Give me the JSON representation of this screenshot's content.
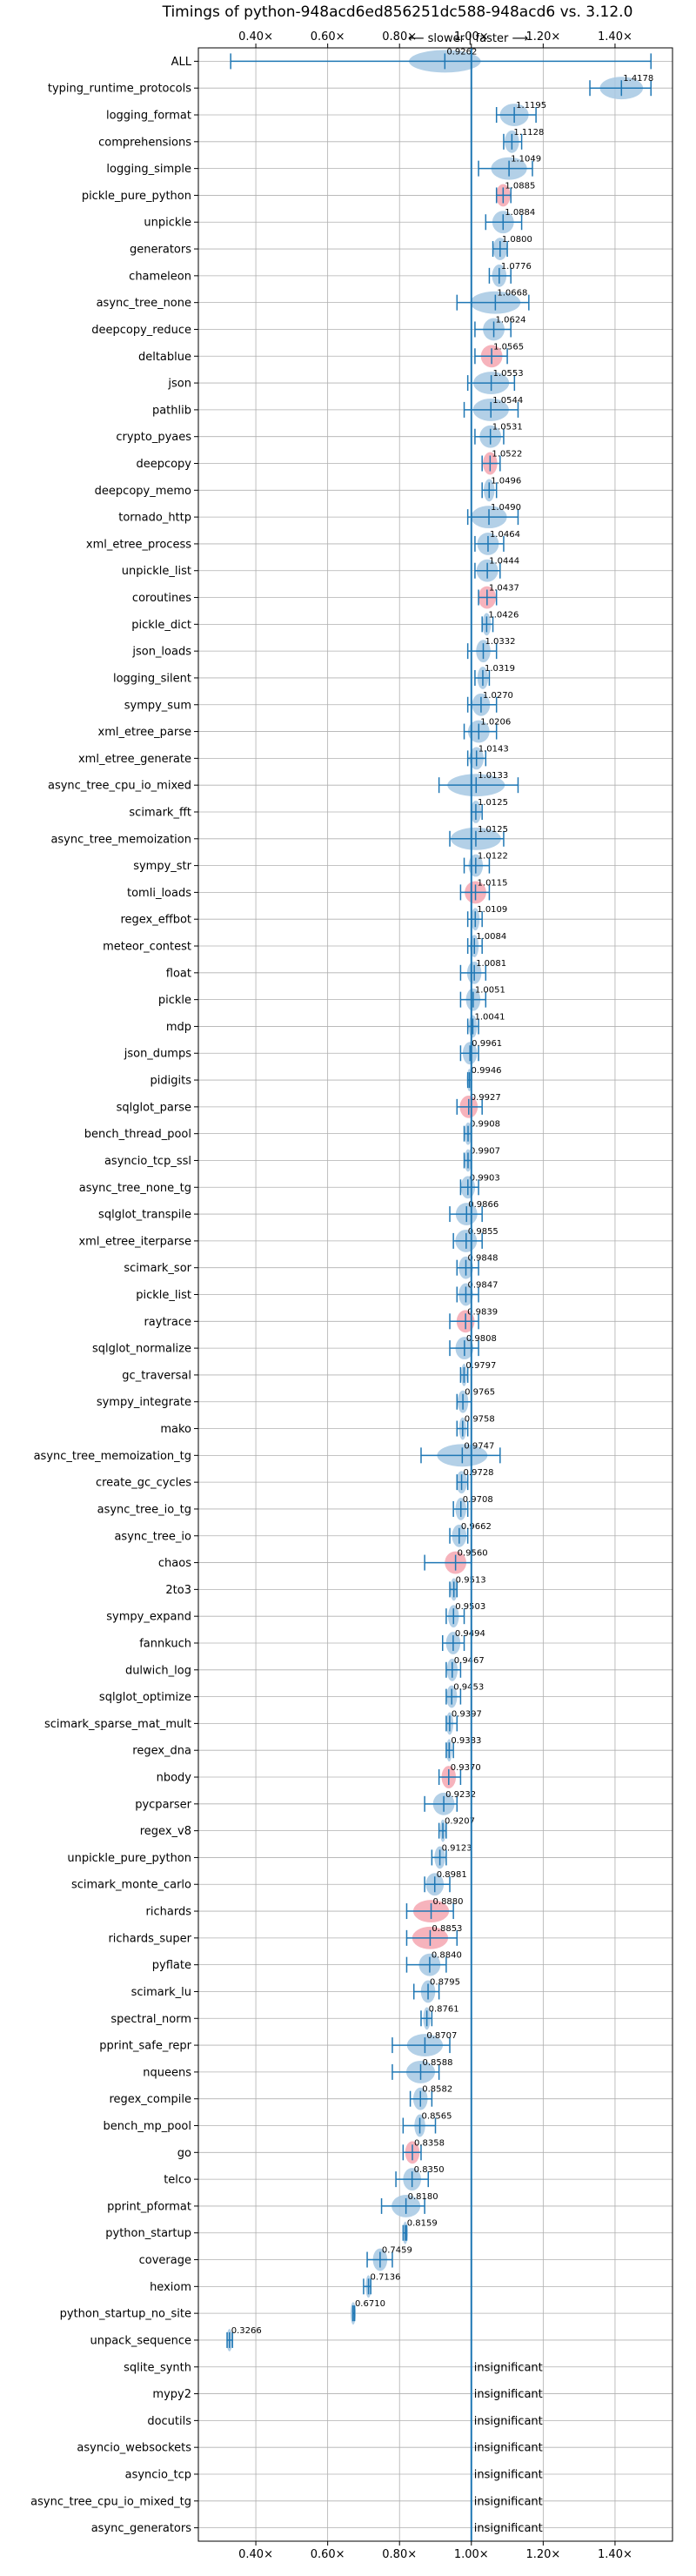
{
  "chart_data": {
    "type": "violin",
    "title": "Timings of python-948acd6ed856251dc588-948acd6 vs. 3.12.0",
    "direction_label": "⟵ slower | faster ⟶",
    "xlim": [
      0.24,
      1.56
    ],
    "x_ticks": [
      {
        "value": 0.4,
        "label": "0.40×"
      },
      {
        "value": 0.6,
        "label": "0.60×"
      },
      {
        "value": 0.8,
        "label": "0.80×"
      },
      {
        "value": 1.0,
        "label": "1.00×"
      },
      {
        "value": 1.2,
        "label": "1.20×"
      },
      {
        "value": 1.4,
        "label": "1.40×"
      }
    ],
    "reference_line": 1.0,
    "grid": true,
    "colors": {
      "normal": "#a6c8e3",
      "highlight": "#f4a6b0",
      "line": "#1f77b4"
    },
    "insignificant_label": "insignificant",
    "benchmarks": [
      {
        "name": "ALL",
        "value": 0.9262,
        "label": "0.9262",
        "lo": 0.33,
        "hi": 1.5,
        "spread": 0.1,
        "highlight": false
      },
      {
        "name": "typing_runtime_protocols",
        "value": 1.4178,
        "label": "1.4178",
        "lo": 1.33,
        "hi": 1.5,
        "spread": 0.06,
        "highlight": false
      },
      {
        "name": "logging_format",
        "value": 1.1195,
        "label": "1.1195",
        "lo": 1.07,
        "hi": 1.18,
        "spread": 0.04,
        "highlight": false
      },
      {
        "name": "comprehensions",
        "value": 1.1128,
        "label": "1.1128",
        "lo": 1.09,
        "hi": 1.14,
        "spread": 0.02,
        "highlight": false
      },
      {
        "name": "logging_simple",
        "value": 1.1049,
        "label": "1.1049",
        "lo": 1.02,
        "hi": 1.17,
        "spread": 0.05,
        "highlight": false
      },
      {
        "name": "pickle_pure_python",
        "value": 1.0885,
        "label": "1.0885",
        "lo": 1.07,
        "hi": 1.11,
        "spread": 0.02,
        "highlight": true
      },
      {
        "name": "unpickle",
        "value": 1.0884,
        "label": "1.0884",
        "lo": 1.04,
        "hi": 1.14,
        "spread": 0.03,
        "highlight": false
      },
      {
        "name": "generators",
        "value": 1.08,
        "label": "1.0800",
        "lo": 1.06,
        "hi": 1.1,
        "spread": 0.02,
        "highlight": false
      },
      {
        "name": "chameleon",
        "value": 1.0776,
        "label": "1.0776",
        "lo": 1.05,
        "hi": 1.11,
        "spread": 0.02,
        "highlight": false
      },
      {
        "name": "async_tree_none",
        "value": 1.0668,
        "label": "1.0668",
        "lo": 0.96,
        "hi": 1.16,
        "spread": 0.07,
        "highlight": false
      },
      {
        "name": "deepcopy_reduce",
        "value": 1.0624,
        "label": "1.0624",
        "lo": 1.01,
        "hi": 1.11,
        "spread": 0.03,
        "highlight": false
      },
      {
        "name": "deltablue",
        "value": 1.0565,
        "label": "1.0565",
        "lo": 1.01,
        "hi": 1.1,
        "spread": 0.03,
        "highlight": true
      },
      {
        "name": "json",
        "value": 1.0553,
        "label": "1.0553",
        "lo": 0.99,
        "hi": 1.12,
        "spread": 0.05,
        "highlight": false
      },
      {
        "name": "pathlib",
        "value": 1.0544,
        "label": "1.0544",
        "lo": 0.98,
        "hi": 1.13,
        "spread": 0.05,
        "highlight": false
      },
      {
        "name": "crypto_pyaes",
        "value": 1.0531,
        "label": "1.0531",
        "lo": 1.01,
        "hi": 1.09,
        "spread": 0.03,
        "highlight": false
      },
      {
        "name": "deepcopy",
        "value": 1.0522,
        "label": "1.0522",
        "lo": 1.03,
        "hi": 1.08,
        "spread": 0.02,
        "highlight": true
      },
      {
        "name": "deepcopy_memo",
        "value": 1.0496,
        "label": "1.0496",
        "lo": 1.03,
        "hi": 1.07,
        "spread": 0.015,
        "highlight": false
      },
      {
        "name": "tornado_http",
        "value": 1.049,
        "label": "1.0490",
        "lo": 0.99,
        "hi": 1.13,
        "spread": 0.05,
        "highlight": false
      },
      {
        "name": "xml_etree_process",
        "value": 1.0464,
        "label": "1.0464",
        "lo": 1.01,
        "hi": 1.09,
        "spread": 0.03,
        "highlight": false
      },
      {
        "name": "unpickle_list",
        "value": 1.0444,
        "label": "1.0444",
        "lo": 1.01,
        "hi": 1.08,
        "spread": 0.03,
        "highlight": false
      },
      {
        "name": "coroutines",
        "value": 1.0437,
        "label": "1.0437",
        "lo": 1.02,
        "hi": 1.07,
        "spread": 0.025,
        "highlight": true
      },
      {
        "name": "pickle_dict",
        "value": 1.0426,
        "label": "1.0426",
        "lo": 1.03,
        "hi": 1.06,
        "spread": 0.012,
        "highlight": false
      },
      {
        "name": "json_loads",
        "value": 1.0332,
        "label": "1.0332",
        "lo": 0.99,
        "hi": 1.07,
        "spread": 0.02,
        "highlight": false
      },
      {
        "name": "logging_silent",
        "value": 1.0319,
        "label": "1.0319",
        "lo": 1.01,
        "hi": 1.05,
        "spread": 0.015,
        "highlight": false
      },
      {
        "name": "sympy_sum",
        "value": 1.027,
        "label": "1.0270",
        "lo": 0.99,
        "hi": 1.07,
        "spread": 0.025,
        "highlight": false
      },
      {
        "name": "xml_etree_parse",
        "value": 1.0206,
        "label": "1.0206",
        "lo": 0.98,
        "hi": 1.07,
        "spread": 0.03,
        "highlight": false
      },
      {
        "name": "xml_etree_generate",
        "value": 1.0143,
        "label": "1.0143",
        "lo": 0.99,
        "hi": 1.04,
        "spread": 0.02,
        "highlight": false
      },
      {
        "name": "async_tree_cpu_io_mixed",
        "value": 1.0133,
        "label": "1.0133",
        "lo": 0.91,
        "hi": 1.13,
        "spread": 0.08,
        "highlight": false
      },
      {
        "name": "scimark_fft",
        "value": 1.0125,
        "label": "1.0125",
        "lo": 1.0,
        "hi": 1.03,
        "spread": 0.015,
        "highlight": false
      },
      {
        "name": "async_tree_memoization",
        "value": 1.0125,
        "label": "1.0125",
        "lo": 0.94,
        "hi": 1.09,
        "spread": 0.07,
        "highlight": false
      },
      {
        "name": "sympy_str",
        "value": 1.0122,
        "label": "1.0122",
        "lo": 0.98,
        "hi": 1.05,
        "spread": 0.02,
        "highlight": false
      },
      {
        "name": "tomli_loads",
        "value": 1.0115,
        "label": "1.0115",
        "lo": 0.97,
        "hi": 1.05,
        "spread": 0.03,
        "highlight": true
      },
      {
        "name": "regex_effbot",
        "value": 1.0109,
        "label": "1.0109",
        "lo": 0.99,
        "hi": 1.03,
        "spread": 0.012,
        "highlight": false
      },
      {
        "name": "meteor_contest",
        "value": 1.0084,
        "label": "1.0084",
        "lo": 0.99,
        "hi": 1.03,
        "spread": 0.012,
        "highlight": false
      },
      {
        "name": "float",
        "value": 1.0081,
        "label": "1.0081",
        "lo": 0.97,
        "hi": 1.04,
        "spread": 0.02,
        "highlight": false
      },
      {
        "name": "pickle",
        "value": 1.0051,
        "label": "1.0051",
        "lo": 0.97,
        "hi": 1.04,
        "spread": 0.02,
        "highlight": false
      },
      {
        "name": "mdp",
        "value": 1.0041,
        "label": "1.0041",
        "lo": 0.99,
        "hi": 1.02,
        "spread": 0.012,
        "highlight": false
      },
      {
        "name": "json_dumps",
        "value": 0.9961,
        "label": "0.9961",
        "lo": 0.97,
        "hi": 1.02,
        "spread": 0.02,
        "highlight": false
      },
      {
        "name": "pidigits",
        "value": 0.9946,
        "label": "0.9946",
        "lo": 0.99,
        "hi": 1.0,
        "spread": 0.005,
        "highlight": false
      },
      {
        "name": "sqlglot_parse",
        "value": 0.9927,
        "label": "0.9927",
        "lo": 0.96,
        "hi": 1.03,
        "spread": 0.025,
        "highlight": true
      },
      {
        "name": "bench_thread_pool",
        "value": 0.9908,
        "label": "0.9908",
        "lo": 0.98,
        "hi": 1.0,
        "spread": 0.01,
        "highlight": false
      },
      {
        "name": "asyncio_tcp_ssl",
        "value": 0.9907,
        "label": "0.9907",
        "lo": 0.98,
        "hi": 1.0,
        "spread": 0.01,
        "highlight": false
      },
      {
        "name": "async_tree_none_tg",
        "value": 0.9903,
        "label": "0.9903",
        "lo": 0.97,
        "hi": 1.02,
        "spread": 0.02,
        "highlight": false
      },
      {
        "name": "sqlglot_transpile",
        "value": 0.9866,
        "label": "0.9866",
        "lo": 0.94,
        "hi": 1.03,
        "spread": 0.03,
        "highlight": false
      },
      {
        "name": "xml_etree_iterparse",
        "value": 0.9855,
        "label": "0.9855",
        "lo": 0.95,
        "hi": 1.03,
        "spread": 0.03,
        "highlight": false
      },
      {
        "name": "scimark_sor",
        "value": 0.9848,
        "label": "0.9848",
        "lo": 0.96,
        "hi": 1.02,
        "spread": 0.02,
        "highlight": false
      },
      {
        "name": "pickle_list",
        "value": 0.9847,
        "label": "0.9847",
        "lo": 0.96,
        "hi": 1.02,
        "spread": 0.02,
        "highlight": false
      },
      {
        "name": "raytrace",
        "value": 0.9839,
        "label": "0.9839",
        "lo": 0.94,
        "hi": 1.02,
        "spread": 0.025,
        "highlight": true
      },
      {
        "name": "sqlglot_normalize",
        "value": 0.9808,
        "label": "0.9808",
        "lo": 0.94,
        "hi": 1.02,
        "spread": 0.025,
        "highlight": false
      },
      {
        "name": "gc_traversal",
        "value": 0.9797,
        "label": "0.9797",
        "lo": 0.97,
        "hi": 0.99,
        "spread": 0.008,
        "highlight": false
      },
      {
        "name": "sympy_integrate",
        "value": 0.9765,
        "label": "0.9765",
        "lo": 0.96,
        "hi": 1.0,
        "spread": 0.015,
        "highlight": false
      },
      {
        "name": "mako",
        "value": 0.9758,
        "label": "0.9758",
        "lo": 0.96,
        "hi": 0.99,
        "spread": 0.01,
        "highlight": false
      },
      {
        "name": "async_tree_memoization_tg",
        "value": 0.9747,
        "label": "0.9747",
        "lo": 0.86,
        "hi": 1.08,
        "spread": 0.07,
        "highlight": false
      },
      {
        "name": "create_gc_cycles",
        "value": 0.9728,
        "label": "0.9728",
        "lo": 0.96,
        "hi": 0.99,
        "spread": 0.015,
        "highlight": false
      },
      {
        "name": "async_tree_io_tg",
        "value": 0.9708,
        "label": "0.9708",
        "lo": 0.95,
        "hi": 0.99,
        "spread": 0.015,
        "highlight": false
      },
      {
        "name": "async_tree_io",
        "value": 0.9662,
        "label": "0.9662",
        "lo": 0.94,
        "hi": 0.99,
        "spread": 0.02,
        "highlight": false
      },
      {
        "name": "chaos",
        "value": 0.956,
        "label": "0.9560",
        "lo": 0.87,
        "hi": 1.0,
        "spread": 0.03,
        "highlight": true
      },
      {
        "name": "2to3",
        "value": 0.9513,
        "label": "0.9513",
        "lo": 0.94,
        "hi": 0.96,
        "spread": 0.01,
        "highlight": false
      },
      {
        "name": "sympy_expand",
        "value": 0.9503,
        "label": "0.9503",
        "lo": 0.93,
        "hi": 0.98,
        "spread": 0.015,
        "highlight": false
      },
      {
        "name": "fannkuch",
        "value": 0.9494,
        "label": "0.9494",
        "lo": 0.92,
        "hi": 0.98,
        "spread": 0.02,
        "highlight": false
      },
      {
        "name": "dulwich_log",
        "value": 0.9467,
        "label": "0.9467",
        "lo": 0.93,
        "hi": 0.97,
        "spread": 0.015,
        "highlight": false
      },
      {
        "name": "sqlglot_optimize",
        "value": 0.9453,
        "label": "0.9453",
        "lo": 0.93,
        "hi": 0.97,
        "spread": 0.015,
        "highlight": false
      },
      {
        "name": "scimark_sparse_mat_mult",
        "value": 0.9397,
        "label": "0.9397",
        "lo": 0.93,
        "hi": 0.96,
        "spread": 0.01,
        "highlight": false
      },
      {
        "name": "regex_dna",
        "value": 0.9383,
        "label": "0.9383",
        "lo": 0.93,
        "hi": 0.95,
        "spread": 0.008,
        "highlight": false
      },
      {
        "name": "nbody",
        "value": 0.937,
        "label": "0.9370",
        "lo": 0.91,
        "hi": 0.97,
        "spread": 0.02,
        "highlight": true
      },
      {
        "name": "pycparser",
        "value": 0.9232,
        "label": "0.9232",
        "lo": 0.87,
        "hi": 0.96,
        "spread": 0.03,
        "highlight": false
      },
      {
        "name": "regex_v8",
        "value": 0.9207,
        "label": "0.9207",
        "lo": 0.91,
        "hi": 0.93,
        "spread": 0.008,
        "highlight": false
      },
      {
        "name": "unpickle_pure_python",
        "value": 0.9123,
        "label": "0.9123",
        "lo": 0.89,
        "hi": 0.93,
        "spread": 0.015,
        "highlight": false
      },
      {
        "name": "scimark_monte_carlo",
        "value": 0.8981,
        "label": "0.8981",
        "lo": 0.87,
        "hi": 0.94,
        "spread": 0.025,
        "highlight": false
      },
      {
        "name": "richards",
        "value": 0.888,
        "label": "0.8880",
        "lo": 0.82,
        "hi": 0.95,
        "spread": 0.05,
        "highlight": true
      },
      {
        "name": "richards_super",
        "value": 0.8853,
        "label": "0.8853",
        "lo": 0.82,
        "hi": 0.96,
        "spread": 0.05,
        "highlight": true
      },
      {
        "name": "pyflate",
        "value": 0.884,
        "label": "0.8840",
        "lo": 0.82,
        "hi": 0.93,
        "spread": 0.03,
        "highlight": false
      },
      {
        "name": "scimark_lu",
        "value": 0.8795,
        "label": "0.8795",
        "lo": 0.84,
        "hi": 0.91,
        "spread": 0.02,
        "highlight": false
      },
      {
        "name": "spectral_norm",
        "value": 0.8761,
        "label": "0.8761",
        "lo": 0.86,
        "hi": 0.89,
        "spread": 0.01,
        "highlight": false
      },
      {
        "name": "pprint_safe_repr",
        "value": 0.8707,
        "label": "0.8707",
        "lo": 0.78,
        "hi": 0.94,
        "spread": 0.05,
        "highlight": false
      },
      {
        "name": "nqueens",
        "value": 0.8588,
        "label": "0.8588",
        "lo": 0.78,
        "hi": 0.91,
        "spread": 0.04,
        "highlight": false
      },
      {
        "name": "regex_compile",
        "value": 0.8582,
        "label": "0.8582",
        "lo": 0.83,
        "hi": 0.89,
        "spread": 0.02,
        "highlight": false
      },
      {
        "name": "bench_mp_pool",
        "value": 0.8565,
        "label": "0.8565",
        "lo": 0.81,
        "hi": 0.9,
        "spread": 0.015,
        "highlight": false
      },
      {
        "name": "go",
        "value": 0.8358,
        "label": "0.8358",
        "lo": 0.81,
        "hi": 0.86,
        "spread": 0.02,
        "highlight": true
      },
      {
        "name": "telco",
        "value": 0.835,
        "label": "0.8350",
        "lo": 0.79,
        "hi": 0.88,
        "spread": 0.025,
        "highlight": false
      },
      {
        "name": "pprint_pformat",
        "value": 0.818,
        "label": "0.8180",
        "lo": 0.75,
        "hi": 0.87,
        "spread": 0.04,
        "highlight": false
      },
      {
        "name": "python_startup",
        "value": 0.8159,
        "label": "0.8159",
        "lo": 0.81,
        "hi": 0.82,
        "spread": 0.005,
        "highlight": false
      },
      {
        "name": "coverage",
        "value": 0.7459,
        "label": "0.7459",
        "lo": 0.71,
        "hi": 0.78,
        "spread": 0.02,
        "highlight": false
      },
      {
        "name": "hexiom",
        "value": 0.7136,
        "label": "0.7136",
        "lo": 0.7,
        "hi": 0.72,
        "spread": 0.008,
        "highlight": false
      },
      {
        "name": "python_startup_no_site",
        "value": 0.671,
        "label": "0.6710",
        "lo": 0.67,
        "hi": 0.675,
        "spread": 0.004,
        "highlight": false
      },
      {
        "name": "unpack_sequence",
        "value": 0.3266,
        "label": "0.3266",
        "lo": 0.32,
        "hi": 0.335,
        "spread": 0.008,
        "highlight": false
      },
      {
        "name": "sqlite_synth",
        "insignificant": true
      },
      {
        "name": "mypy2",
        "insignificant": true
      },
      {
        "name": "docutils",
        "insignificant": true
      },
      {
        "name": "asyncio_websockets",
        "insignificant": true
      },
      {
        "name": "asyncio_tcp",
        "insignificant": true
      },
      {
        "name": "async_tree_cpu_io_mixed_tg",
        "insignificant": true
      },
      {
        "name": "async_generators",
        "insignificant": true
      }
    ]
  }
}
